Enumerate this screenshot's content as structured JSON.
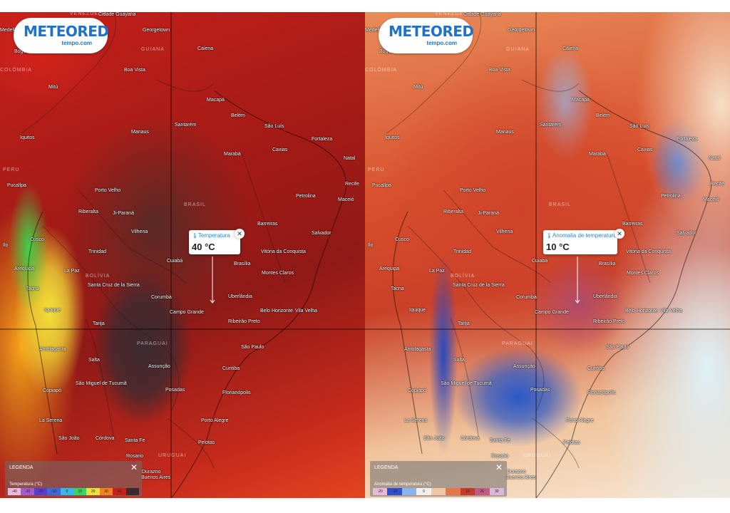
{
  "panels": [
    {
      "logo": {
        "name": "METEORED",
        "sub": "tempo.com"
      },
      "popup": {
        "title": "Temperatura",
        "value": "40 °C"
      },
      "legend": {
        "title": "LEGENDA",
        "variable": "Temperatura (°C)",
        "ticks": [
          "-40",
          "-30",
          "-20",
          "-10",
          "0",
          "10",
          "20",
          "30",
          "40",
          "50"
        ],
        "colors": [
          "#e9b9d9",
          "#a45bd0",
          "#5b3ccc",
          "#3a6ad8",
          "#33b9ea",
          "#36d460",
          "#e9e13c",
          "#f0841d",
          "#c7201a",
          "#3a2a30"
        ]
      }
    },
    {
      "logo": {
        "name": "METEORED",
        "sub": "tempo.com"
      },
      "popup": {
        "title": "Anomalia de temperatura",
        "value": "10 °C"
      },
      "legend": {
        "title": "LEGENDA",
        "variable": "Anomalia de temperatura (°C)",
        "ticks": [
          "-20",
          "-10",
          "",
          "0",
          "",
          "",
          "10",
          "20",
          "30"
        ],
        "colors": [
          "#e9b9d9",
          "#2f4fd0",
          "#8ab4ef",
          "#f4f1ec",
          "#f1c8a4",
          "#e4764a",
          "#c63b28",
          "#c25a86",
          "#d9b9d9"
        ]
      }
    }
  ],
  "places": {
    "cities": [
      "Cidade Guayana",
      "Georgetown",
      "Caiena",
      "Bogotá",
      "Medellín",
      "Boa Vista",
      "Mitú",
      "Macapá",
      "Belém",
      "São Luís",
      "Santarém",
      "Manaus",
      "Fortaleza",
      "Iquitos",
      "Caxias",
      "Marabá",
      "Natal",
      "Recife",
      "Maceió",
      "Petrolina",
      "Pucallpa",
      "Porto Velho",
      "Riberalta",
      "Ji-Paraná",
      "Barreiras",
      "Salvador",
      "Vilhena",
      "Cusco",
      "Trinidad",
      "Cuiabá",
      "Brasília",
      "Vitória da Conquista",
      "Montes Claros",
      "Ilo",
      "Arequipa",
      "La Paz",
      "Santa Cruz de la Sierra",
      "Corumbá",
      "Uberlândia",
      "Belo Horizonte",
      "Tacna",
      "Iquique",
      "Campo Grande",
      "Ribeirão Preto",
      "Vila Velha",
      "Tarija",
      "São Paulo",
      "Antofagasta",
      "Curitiba",
      "Salta",
      "Assunção",
      "Copiapó",
      "São Miguel de Tucumã",
      "Posadas",
      "Florianópolis",
      "La Serena",
      "Porto Alegre",
      "São João",
      "Córdova",
      "Santa Fe",
      "Pelotas",
      "Rosario",
      "Durazno",
      "Buenos Aires"
    ],
    "countries": [
      "VENEZUELA",
      "GUIANA",
      "COLÔMBIA",
      "PERU",
      "BRASIL",
      "BOLÍVIA",
      "PARAGUAI",
      "URUGUAI"
    ]
  },
  "icons": {
    "thermometer": "thermometer-icon",
    "close": "close-icon"
  }
}
